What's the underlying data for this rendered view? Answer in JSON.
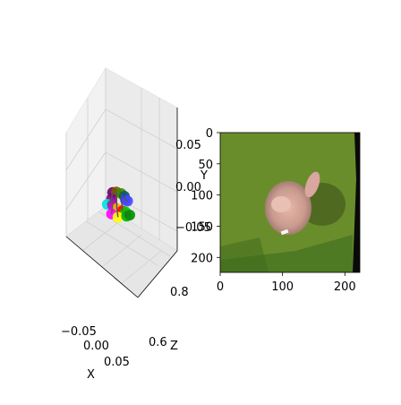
{
  "chart_data": [
    {
      "type": "scatter",
      "projection": "3d",
      "title": "",
      "xlabel": "X",
      "ylabel": "Y",
      "zlabel": "Z",
      "xticks": [
        "−0.05",
        "0.00",
        "0.05"
      ],
      "yticks": [
        "0.05",
        "0.00",
        "−0.05"
      ],
      "zticks": [
        "0.8",
        "0.6"
      ],
      "grid": true,
      "points": [
        {
          "x": -0.012,
          "y": 0.012,
          "z": 0.7,
          "color": "#6a006a"
        },
        {
          "x": -0.005,
          "y": 0.013,
          "z": 0.7,
          "color": "#7a5a00"
        },
        {
          "x": 0.004,
          "y": 0.01,
          "z": 0.7,
          "color": "#3c8c00"
        },
        {
          "x": 0.01,
          "y": 0.005,
          "z": 0.7,
          "color": "#0a5a6a"
        },
        {
          "x": -0.014,
          "y": 0.0,
          "z": 0.7,
          "color": "#8a0080"
        },
        {
          "x": 0.012,
          "y": -0.002,
          "z": 0.7,
          "color": "#2a3cff"
        },
        {
          "x": 0.016,
          "y": -0.004,
          "z": 0.7,
          "color": "#4848ff"
        },
        {
          "x": -0.022,
          "y": -0.01,
          "z": 0.7,
          "color": "#00e0e0"
        },
        {
          "x": -0.012,
          "y": -0.012,
          "z": 0.7,
          "color": "#cc00cc"
        },
        {
          "x": -0.004,
          "y": -0.018,
          "z": 0.7,
          "color": "#ffb000"
        },
        {
          "x": 0.006,
          "y": -0.022,
          "z": 0.7,
          "color": "#ff0000"
        },
        {
          "x": 0.012,
          "y": -0.024,
          "z": 0.7,
          "color": "#00cc00"
        },
        {
          "x": -0.014,
          "y": -0.028,
          "z": 0.7,
          "color": "#ff00ff"
        },
        {
          "x": -0.002,
          "y": -0.034,
          "z": 0.7,
          "color": "#ffff00"
        },
        {
          "x": 0.014,
          "y": -0.032,
          "z": 0.7,
          "color": "#00b000"
        },
        {
          "x": 0.02,
          "y": -0.03,
          "z": 0.7,
          "color": "#009000"
        }
      ]
    },
    {
      "type": "image",
      "title": "",
      "xticks": [
        "0",
        "100",
        "200"
      ],
      "yticks": [
        "0",
        "50",
        "100",
        "150",
        "200"
      ],
      "xlim": [
        0,
        224
      ],
      "ylim": [
        224,
        0
      ],
      "content": "green-background-hand-photo"
    }
  ]
}
